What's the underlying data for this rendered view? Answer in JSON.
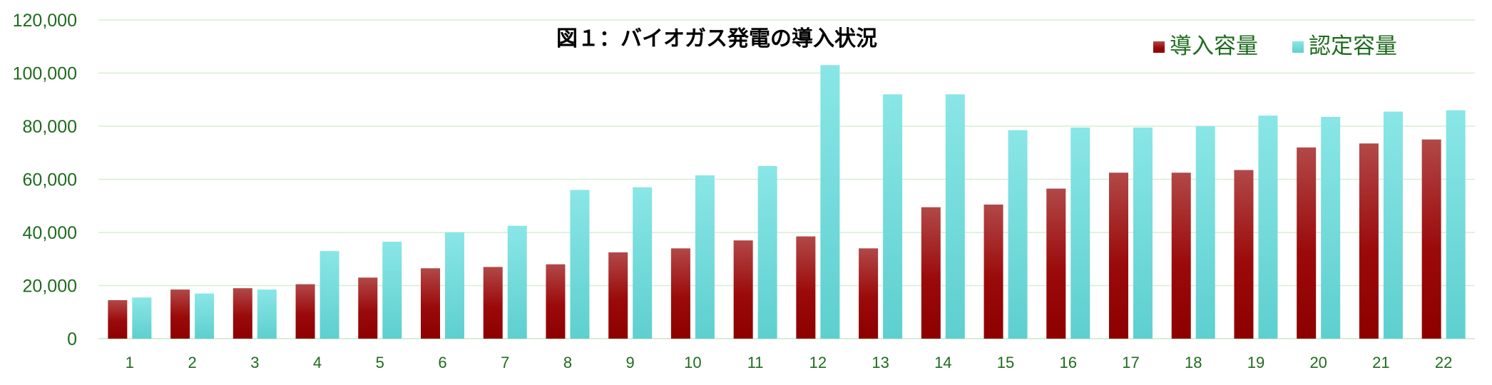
{
  "chart_data": {
    "type": "bar",
    "title": "図１：バイオガス発電の導入状況",
    "xlabel": "",
    "ylabel": "",
    "ylim": [
      0,
      120000
    ],
    "yticks": [
      0,
      20000,
      40000,
      60000,
      80000,
      100000,
      120000
    ],
    "ytick_labels": [
      "0",
      "20,000",
      "40,000",
      "60,000",
      "80,000",
      "100,000",
      "120,000"
    ],
    "grid": true,
    "legend_position": "top-right",
    "categories": [
      "1",
      "2",
      "3",
      "4",
      "5",
      "6",
      "7",
      "8",
      "9",
      "10",
      "11",
      "12",
      "13",
      "14",
      "15",
      "16",
      "17",
      "18",
      "19",
      "20",
      "21",
      "22"
    ],
    "series": [
      {
        "name": "導入容量",
        "color": "#9b0a0a",
        "values": [
          14500,
          18500,
          19000,
          20500,
          23000,
          26500,
          27000,
          28000,
          32500,
          34000,
          37000,
          38500,
          34000,
          49500,
          50500,
          56500,
          62500,
          62500,
          63500,
          72000,
          73500,
          75000
        ]
      },
      {
        "name": "認定容量",
        "color": "#7adfe0",
        "values": [
          15500,
          17000,
          18500,
          33000,
          36500,
          40000,
          42500,
          56000,
          57000,
          61500,
          65000,
          103000,
          92000,
          92000,
          78500,
          79500,
          79500,
          80000,
          84000,
          83500,
          85500,
          86000
        ]
      }
    ]
  }
}
